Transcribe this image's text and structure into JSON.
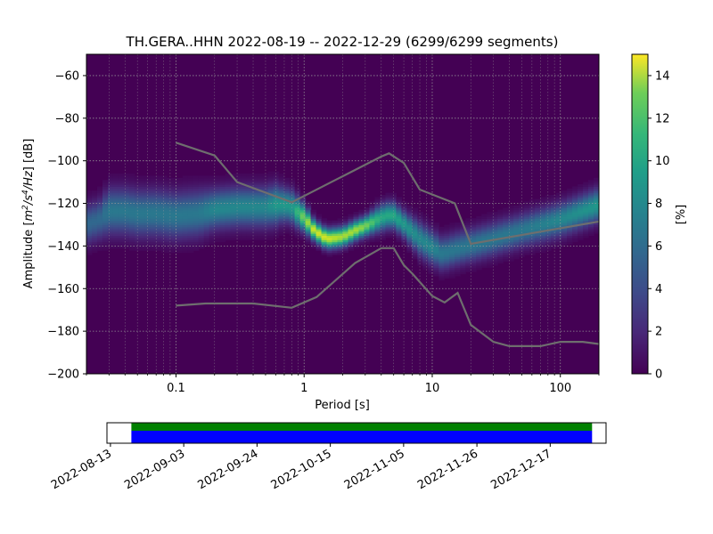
{
  "figure": {
    "title": "TH.GERA..HHN   2022-08-19 -- 2022-12-29  (6299/6299 segments)"
  },
  "chart_data": [
    {
      "type": "heatmap",
      "name": "psd-probability-density",
      "title": "TH.GERA..HHN   2022-08-19 -- 2022-12-29  (6299/6299 segments)",
      "xlabel": "Period [s]",
      "ylabel_parts": [
        "Amplitude [",
        "m",
        "2",
        "/s",
        "4",
        "/Hz",
        "] [dB]"
      ],
      "x_scale": "log",
      "xlim": [
        0.02,
        200
      ],
      "ylim": [
        -200,
        -50
      ],
      "x_ticks": [
        {
          "value": 0.1,
          "label": "0.1"
        },
        {
          "value": 1,
          "label": "1"
        },
        {
          "value": 10,
          "label": "10"
        },
        {
          "value": 100,
          "label": "100"
        }
      ],
      "y_ticks": [
        {
          "value": -60,
          "label": "−60"
        },
        {
          "value": -80,
          "label": "−80"
        },
        {
          "value": -100,
          "label": "−100"
        },
        {
          "value": -120,
          "label": "−120"
        },
        {
          "value": -140,
          "label": "−140"
        },
        {
          "value": -160,
          "label": "−160"
        },
        {
          "value": -180,
          "label": "−180"
        },
        {
          "value": -200,
          "label": "−200"
        }
      ],
      "grid": true,
      "colormap": "viridis",
      "background_color": "#440154",
      "density_ridge": {
        "period": [
          0.02,
          0.025,
          0.03,
          0.04,
          0.05,
          0.07,
          0.1,
          0.15,
          0.2,
          0.3,
          0.4,
          0.5,
          0.6,
          0.7,
          0.8,
          1.0,
          1.2,
          1.5,
          2.0,
          2.5,
          3.0,
          4.0,
          4.5,
          5.0,
          6.0,
          8.0,
          10,
          12,
          15,
          20,
          30,
          50,
          100,
          200
        ],
        "db": [
          -130,
          -128,
          -124,
          -124,
          -125,
          -125,
          -126,
          -125,
          -123,
          -122,
          -122,
          -122,
          -121,
          -121,
          -122,
          -127,
          -133,
          -137,
          -136,
          -133,
          -131,
          -127,
          -126,
          -126,
          -130,
          -137,
          -141,
          -144,
          -142,
          -140,
          -137,
          -133,
          -128,
          -121
        ],
        "peak_percent": [
          5,
          5,
          6,
          6,
          6,
          6,
          6,
          6,
          7,
          7,
          7,
          7,
          8,
          8,
          8,
          12,
          14,
          14,
          13,
          13,
          12,
          9,
          9,
          9,
          8,
          7,
          7,
          6,
          6,
          6,
          6,
          6,
          7,
          8
        ],
        "spread_db": [
          6,
          6,
          7,
          7,
          7,
          7,
          7,
          7,
          6,
          6,
          6,
          6,
          6,
          5,
          5,
          4,
          3,
          3,
          3,
          3,
          3,
          4,
          4,
          4,
          4,
          5,
          5,
          5,
          5,
          5,
          5,
          5,
          5,
          5
        ]
      },
      "series": [
        {
          "name": "",
          "color": "#6e6e6e",
          "x": [
            0.1,
            0.2,
            0.3,
            0.8,
            4.0,
            4.6,
            6.0,
            8.0,
            15.0,
            20.0,
            200.0
          ],
          "y": [
            -91.5,
            -97.5,
            -110.0,
            -119.5,
            -98.0,
            -96.5,
            -101.0,
            -113.5,
            -120.0,
            -139.0,
            -128.5
          ]
        },
        {
          "name": "",
          "color": "#6e6e6e",
          "x": [
            0.1,
            0.17,
            0.4,
            0.8,
            1.25,
            2.5,
            4.0,
            5.0,
            6.0,
            7.0,
            10.0,
            12.5,
            15.8,
            20.0,
            30.0,
            40.0,
            70.0,
            100.0,
            150.0,
            200.0
          ],
          "y": [
            -168.0,
            -167.0,
            -167.0,
            -169.0,
            -164.0,
            -148.0,
            -141.0,
            -141.0,
            -149.0,
            -153.0,
            -163.5,
            -166.5,
            -162.0,
            -177.0,
            -185.0,
            -187.0,
            -187.0,
            -185.0,
            -185.0,
            -186.0
          ]
        }
      ]
    },
    {
      "type": "colorbar",
      "name": "percent-colorbar",
      "label": "[%]",
      "range": [
        0,
        15
      ],
      "colormap": "viridis",
      "ticks": [
        {
          "value": 0,
          "label": "0"
        },
        {
          "value": 2,
          "label": "2"
        },
        {
          "value": 4,
          "label": "4"
        },
        {
          "value": 6,
          "label": "6"
        },
        {
          "value": 8,
          "label": "8"
        },
        {
          "value": 10,
          "label": "10"
        },
        {
          "value": 12,
          "label": "12"
        },
        {
          "value": 14,
          "label": "14"
        }
      ]
    },
    {
      "type": "timeline",
      "name": "data-coverage",
      "range": [
        "2022-08-12",
        "2023-01-02"
      ],
      "ticks": [
        "2022-08-13",
        "2022-09-03",
        "2022-09-24",
        "2022-10-15",
        "2022-11-05",
        "2022-11-26",
        "2022-12-17"
      ],
      "series": [
        {
          "name": "",
          "color": "#008000",
          "start": "2022-08-19",
          "end": "2022-12-29"
        },
        {
          "name": "",
          "color": "#0000ff",
          "start": "2022-08-19",
          "end": "2022-12-29"
        }
      ]
    }
  ]
}
